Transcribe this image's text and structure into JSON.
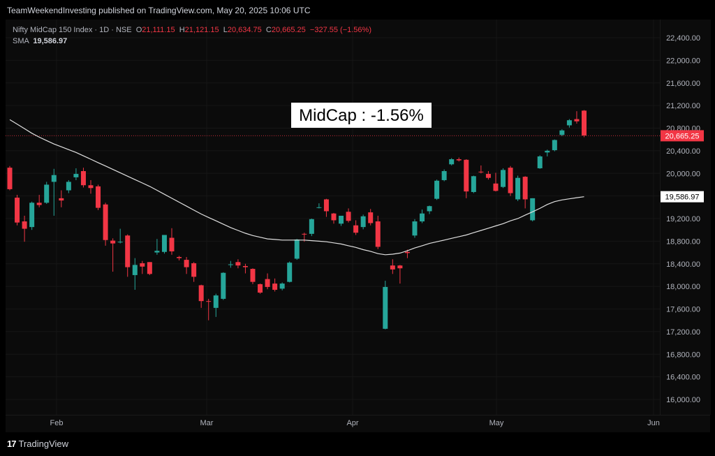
{
  "header": {
    "published_line": "TeamWeekendInvesting published on TradingView.com, May 20, 2025 10:06 UTC"
  },
  "legend": {
    "symbol": "Nifty MidCap 150 Index · 1D · NSE",
    "o_label": "O",
    "o_value": "21,111.15",
    "h_label": "H",
    "h_value": "21,121.15",
    "l_label": "L",
    "l_value": "20,634.75",
    "c_label": "C",
    "c_value": "20,665.25",
    "change": "−327.55 (−1.56%)",
    "sma_label": "SMA",
    "sma_value": "19,586.97"
  },
  "annotation": {
    "text": "MidCap : -1.56%"
  },
  "footer": {
    "brand": "TradingView",
    "logo_icon": "tradingview-logo-icon"
  },
  "colors": {
    "up": "#26a69a",
    "down": "#f23645",
    "sma": "#e0e0e0",
    "background": "#000000"
  },
  "chart_data": {
    "type": "candlestick",
    "ylim": [
      15700,
      22700
    ],
    "y_ticks": [
      "16,000.00",
      "16,400.00",
      "16,800.00",
      "17,200.00",
      "17,600.00",
      "18,000.00",
      "18,400.00",
      "18,800.00",
      "19,200.00",
      "19,600.00",
      "20,000.00",
      "20,400.00",
      "20,800.00",
      "21,200.00",
      "21,600.00",
      "22,000.00",
      "22,400.00"
    ],
    "x_ticks": [
      "Feb",
      "Mar",
      "Apr",
      "May",
      "Jun"
    ],
    "last_price_label": "20,665.25",
    "sma_label": "19,586.97",
    "candles": [
      {
        "o": 20100,
        "h": 20130,
        "c": 19720,
        "l": 19700
      },
      {
        "o": 19570,
        "h": 19620,
        "c": 19130,
        "l": 19080
      },
      {
        "o": 19150,
        "h": 19250,
        "c": 19020,
        "l": 18790
      },
      {
        "o": 19050,
        "h": 19500,
        "c": 19480,
        "l": 19000
      },
      {
        "o": 19480,
        "h": 19620,
        "c": 19440,
        "l": 19400
      },
      {
        "o": 19480,
        "h": 19850,
        "c": 19800,
        "l": 19460
      },
      {
        "o": 19850,
        "h": 20080,
        "c": 19970,
        "l": 19250
      },
      {
        "o": 19560,
        "h": 19700,
        "c": 19520,
        "l": 19400
      },
      {
        "o": 19700,
        "h": 19880,
        "c": 19850,
        "l": 19650
      },
      {
        "o": 19930,
        "h": 20090,
        "c": 19990,
        "l": 19880
      },
      {
        "o": 20040,
        "h": 20100,
        "c": 19790,
        "l": 19750
      },
      {
        "o": 19790,
        "h": 19880,
        "c": 19740,
        "l": 19640
      },
      {
        "o": 19770,
        "h": 19800,
        "c": 19390,
        "l": 19350
      },
      {
        "o": 19450,
        "h": 19480,
        "c": 18820,
        "l": 18720
      },
      {
        "o": 18810,
        "h": 18850,
        "c": 18760,
        "l": 18260
      },
      {
        "o": 18780,
        "h": 19020,
        "c": 18790,
        "l": 18760
      },
      {
        "o": 18900,
        "h": 18920,
        "c": 18340,
        "l": 18170
      },
      {
        "o": 18200,
        "h": 18500,
        "c": 18380,
        "l": 17940
      },
      {
        "o": 18410,
        "h": 18450,
        "c": 18350,
        "l": 18220
      },
      {
        "o": 18430,
        "h": 18430,
        "c": 18220,
        "l": 18200
      },
      {
        "o": 18600,
        "h": 18840,
        "c": 18630,
        "l": 18560
      },
      {
        "o": 18610,
        "h": 18900,
        "c": 18910,
        "l": 18580
      },
      {
        "o": 18860,
        "h": 19030,
        "c": 18620,
        "l": 18560
      },
      {
        "o": 18520,
        "h": 18540,
        "c": 18500,
        "l": 18460
      },
      {
        "o": 18470,
        "h": 18520,
        "c": 18340,
        "l": 18220
      },
      {
        "o": 18410,
        "h": 18430,
        "c": 18170,
        "l": 18080
      },
      {
        "o": 18020,
        "h": 18030,
        "c": 17740,
        "l": 17620
      },
      {
        "o": 17740,
        "h": 17780,
        "c": 17730,
        "l": 17400
      },
      {
        "o": 17620,
        "h": 17870,
        "c": 17840,
        "l": 17460
      },
      {
        "o": 17780,
        "h": 18250,
        "c": 18240,
        "l": 17760
      },
      {
        "o": 18390,
        "h": 18450,
        "c": 18390,
        "l": 18330
      },
      {
        "o": 18430,
        "h": 18480,
        "c": 18370,
        "l": 18320
      },
      {
        "o": 18360,
        "h": 18400,
        "c": 18340,
        "l": 18230
      },
      {
        "o": 18310,
        "h": 18320,
        "c": 18080,
        "l": 18040
      },
      {
        "o": 18040,
        "h": 18050,
        "c": 17890,
        "l": 17870
      },
      {
        "o": 18130,
        "h": 18230,
        "c": 17990,
        "l": 17950
      },
      {
        "o": 18050,
        "h": 18140,
        "c": 17940,
        "l": 17910
      },
      {
        "o": 17960,
        "h": 18070,
        "c": 18050,
        "l": 17930
      },
      {
        "o": 18080,
        "h": 18440,
        "c": 18420,
        "l": 18070
      },
      {
        "o": 18490,
        "h": 18840,
        "c": 18830,
        "l": 18470
      },
      {
        "o": 18930,
        "h": 18950,
        "c": 18920,
        "l": 18790
      },
      {
        "o": 18930,
        "h": 19200,
        "c": 19190,
        "l": 18890
      },
      {
        "o": 19390,
        "h": 19470,
        "c": 19400,
        "l": 19380
      },
      {
        "o": 19540,
        "h": 19550,
        "c": 19330,
        "l": 19230
      },
      {
        "o": 19290,
        "h": 19300,
        "c": 19170,
        "l": 19110
      },
      {
        "o": 19110,
        "h": 19210,
        "c": 19250,
        "l": 19070
      },
      {
        "o": 19320,
        "h": 19380,
        "c": 19160,
        "l": 19130
      },
      {
        "o": 19080,
        "h": 19170,
        "c": 18950,
        "l": 18910
      },
      {
        "o": 19050,
        "h": 19270,
        "c": 19240,
        "l": 19010
      },
      {
        "o": 19310,
        "h": 19370,
        "c": 19120,
        "l": 19080
      },
      {
        "o": 19150,
        "h": 19250,
        "c": 18700,
        "l": 18660
      },
      {
        "o": 17250,
        "h": 18100,
        "c": 17990,
        "l": 17240
      },
      {
        "o": 18370,
        "h": 18480,
        "c": 18300,
        "l": 18220
      },
      {
        "o": 18370,
        "h": 18380,
        "c": 18320,
        "l": 18050
      },
      {
        "o": 18610,
        "h": 18650,
        "c": 18590,
        "l": 18500
      },
      {
        "o": 18900,
        "h": 19190,
        "c": 19150,
        "l": 18860
      },
      {
        "o": 19150,
        "h": 19360,
        "c": 19290,
        "l": 19120
      },
      {
        "o": 19330,
        "h": 19430,
        "c": 19420,
        "l": 19280
      },
      {
        "o": 19550,
        "h": 19890,
        "c": 19870,
        "l": 19530
      },
      {
        "o": 19880,
        "h": 20070,
        "c": 20040,
        "l": 19860
      },
      {
        "o": 20160,
        "h": 20270,
        "c": 20250,
        "l": 20140
      },
      {
        "o": 20250,
        "h": 20280,
        "c": 20230,
        "l": 20210
      },
      {
        "o": 20240,
        "h": 20250,
        "c": 19680,
        "l": 19560
      },
      {
        "o": 19670,
        "h": 19960,
        "c": 19950,
        "l": 19650
      },
      {
        "o": 20030,
        "h": 20140,
        "c": 20020,
        "l": 20000
      },
      {
        "o": 19990,
        "h": 20040,
        "c": 19920,
        "l": 19890
      },
      {
        "o": 19820,
        "h": 20010,
        "c": 19690,
        "l": 19680
      },
      {
        "o": 19760,
        "h": 20090,
        "c": 20060,
        "l": 19740
      },
      {
        "o": 20100,
        "h": 20130,
        "c": 19650,
        "l": 19600
      },
      {
        "o": 19540,
        "h": 19960,
        "c": 19920,
        "l": 19510
      },
      {
        "o": 19940,
        "h": 19950,
        "c": 19540,
        "l": 19380
      },
      {
        "o": 19170,
        "h": 19560,
        "c": 19560,
        "l": 19150
      },
      {
        "o": 20090,
        "h": 20320,
        "c": 20300,
        "l": 20080
      },
      {
        "o": 20370,
        "h": 20420,
        "c": 20400,
        "l": 20300
      },
      {
        "o": 20410,
        "h": 20600,
        "c": 20590,
        "l": 20390
      },
      {
        "o": 20680,
        "h": 20780,
        "c": 20760,
        "l": 20660
      },
      {
        "o": 20850,
        "h": 20960,
        "c": 20940,
        "l": 20810
      },
      {
        "o": 20960,
        "h": 21100,
        "c": 20920,
        "l": 20880
      },
      {
        "o": 21110,
        "h": 21120,
        "c": 20670,
        "l": 20640
      }
    ],
    "sma": [
      20950,
      20870,
      20790,
      20710,
      20640,
      20580,
      20520,
      20470,
      20420,
      20370,
      20310,
      20250,
      20190,
      20130,
      20070,
      20010,
      19950,
      19890,
      19830,
      19770,
      19700,
      19630,
      19560,
      19490,
      19420,
      19350,
      19280,
      19220,
      19160,
      19100,
      19040,
      18990,
      18940,
      18900,
      18870,
      18840,
      18830,
      18820,
      18820,
      18820,
      18820,
      18810,
      18800,
      18790,
      18770,
      18750,
      18720,
      18690,
      18650,
      18620,
      18580,
      18560,
      18570,
      18590,
      18630,
      18680,
      18720,
      18760,
      18790,
      18820,
      18850,
      18880,
      18910,
      18950,
      18990,
      19030,
      19070,
      19110,
      19160,
      19200,
      19260,
      19320,
      19380,
      19450,
      19500,
      19530,
      19550,
      19570,
      19586.97
    ]
  }
}
